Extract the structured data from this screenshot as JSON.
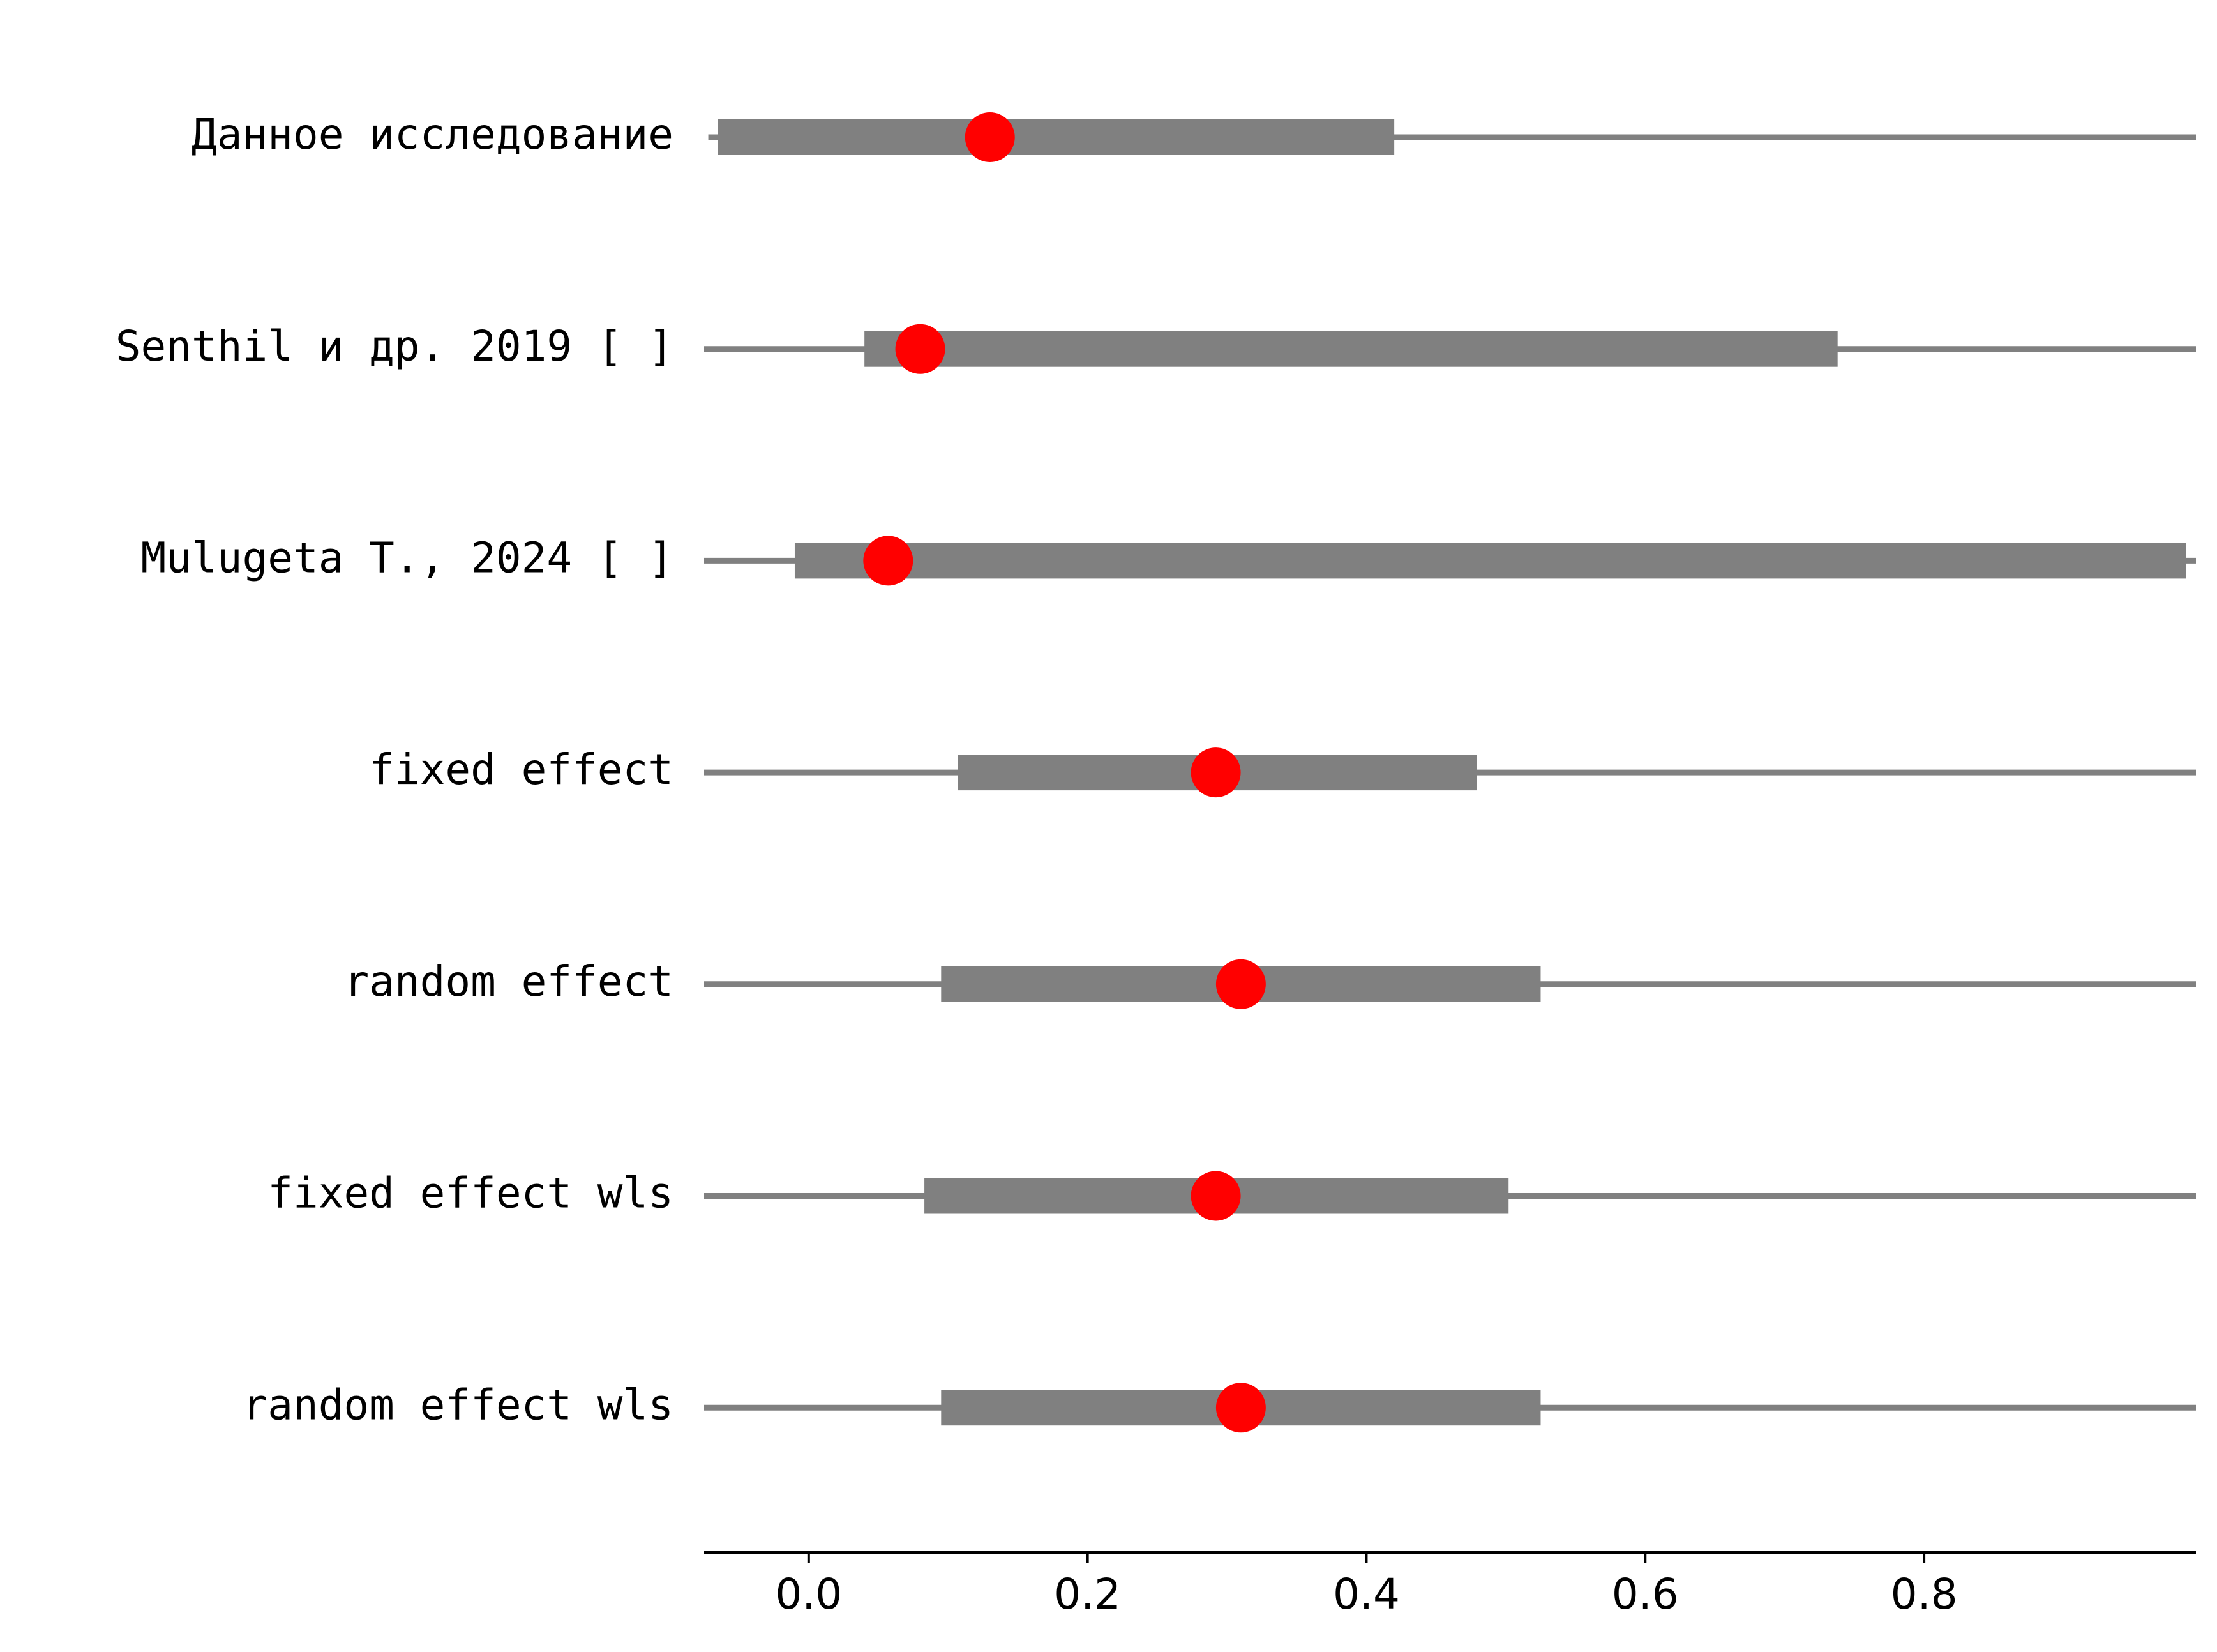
{
  "chart_data": {
    "type": "forest",
    "title": "",
    "xlabel": "",
    "ylabel": "",
    "xlim": [
      -0.075,
      0.995
    ],
    "xticks": [
      0.0,
      0.2,
      0.4,
      0.6,
      0.8
    ],
    "xtick_labels": [
      "0.0",
      "0.2",
      "0.4",
      "0.6",
      "0.8"
    ],
    "grid": false,
    "colors": {
      "point": "#ff0000",
      "interval": "#808080",
      "axis": "#000000"
    },
    "rows": [
      {
        "label": "Данное исследование",
        "estimate": 0.13,
        "ci_low": -0.065,
        "ci_high": 0.42,
        "whisker_low": -0.072,
        "whisker_high": 0.995
      },
      {
        "label": "Senthil и др. 2019 [ ]",
        "estimate": 0.08,
        "ci_low": 0.04,
        "ci_high": 0.738,
        "whisker_low": -0.075,
        "whisker_high": 0.995
      },
      {
        "label": "Mulugeta T., 2024 [ ]",
        "estimate": 0.057,
        "ci_low": -0.01,
        "ci_high": 0.988,
        "whisker_low": -0.075,
        "whisker_high": 0.995
      },
      {
        "label": "fixed effect",
        "estimate": 0.292,
        "ci_low": 0.107,
        "ci_high": 0.479,
        "whisker_low": -0.075,
        "whisker_high": 0.995
      },
      {
        "label": "random effect",
        "estimate": 0.31,
        "ci_low": 0.095,
        "ci_high": 0.525,
        "whisker_low": -0.075,
        "whisker_high": 0.995
      },
      {
        "label": "fixed effect wls",
        "estimate": 0.292,
        "ci_low": 0.083,
        "ci_high": 0.502,
        "whisker_low": -0.075,
        "whisker_high": 0.995
      },
      {
        "label": "random effect wls",
        "estimate": 0.31,
        "ci_low": 0.095,
        "ci_high": 0.525,
        "whisker_low": -0.075,
        "whisker_high": 0.995
      }
    ]
  }
}
